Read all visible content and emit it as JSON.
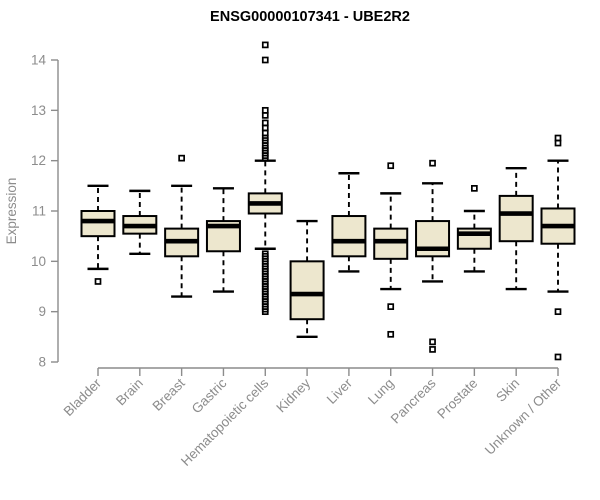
{
  "chart_data": {
    "type": "boxplot",
    "title": "ENSG00000107341 - UBE2R2",
    "ylabel": "Expression",
    "xlabel": "",
    "ylim": [
      8,
      14
    ],
    "yticks": [
      8,
      9,
      10,
      11,
      12,
      13,
      14
    ],
    "grid": false,
    "legend": "none",
    "colors": {
      "box_fill": "#ede7ce",
      "box_border": "#000000",
      "median": "#000000",
      "whisker": "#000000",
      "outlier": "#000000",
      "axis": "#8c8c8c",
      "label": "#8c8c8c",
      "title": "#000000",
      "background": "#ffffff"
    },
    "categories": [
      "Bladder",
      "Brain",
      "Breast",
      "Gastric",
      "Hematopoietic cells",
      "Kidney",
      "Liver",
      "Lung",
      "Pancreas",
      "Prostate",
      "Skin",
      "Unknown / Other"
    ],
    "series": [
      {
        "category": "Bladder",
        "whisker_low": 9.85,
        "q1": 10.5,
        "median": 10.8,
        "q3": 11.0,
        "whisker_high": 11.5,
        "outliers": [
          9.6
        ]
      },
      {
        "category": "Brain",
        "whisker_low": 10.15,
        "q1": 10.55,
        "median": 10.7,
        "q3": 10.9,
        "whisker_high": 11.4,
        "outliers": []
      },
      {
        "category": "Breast",
        "whisker_low": 9.3,
        "q1": 10.1,
        "median": 10.4,
        "q3": 10.65,
        "whisker_high": 11.5,
        "outliers": [
          12.05
        ]
      },
      {
        "category": "Gastric",
        "whisker_low": 9.4,
        "q1": 10.2,
        "median": 10.7,
        "q3": 10.8,
        "whisker_high": 11.45,
        "outliers": []
      },
      {
        "category": "Hematopoietic cells",
        "whisker_low": 10.25,
        "q1": 10.95,
        "median": 11.15,
        "q3": 11.35,
        "whisker_high": 12.0,
        "outliers": [
          14.3,
          14.0,
          13.0,
          12.9,
          12.75,
          12.65,
          12.55,
          12.45,
          12.4,
          12.3,
          12.25,
          12.2,
          12.15,
          12.1,
          12.05,
          10.15,
          10.1,
          10.05,
          10.0,
          9.95,
          9.9,
          9.85,
          9.8,
          9.75,
          9.7,
          9.65,
          9.6,
          9.55,
          9.5,
          9.45,
          9.4,
          9.35,
          9.3,
          9.25,
          9.2,
          9.15,
          9.1,
          9.05,
          9.0
        ]
      },
      {
        "category": "Kidney",
        "whisker_low": 8.5,
        "q1": 8.85,
        "median": 9.35,
        "q3": 10.0,
        "whisker_high": 10.8,
        "outliers": []
      },
      {
        "category": "Liver",
        "whisker_low": 9.8,
        "q1": 10.1,
        "median": 10.4,
        "q3": 10.9,
        "whisker_high": 11.75,
        "outliers": []
      },
      {
        "category": "Lung",
        "whisker_low": 9.45,
        "q1": 10.05,
        "median": 10.4,
        "q3": 10.65,
        "whisker_high": 11.35,
        "outliers": [
          11.9,
          9.1,
          8.55
        ]
      },
      {
        "category": "Pancreas",
        "whisker_low": 9.6,
        "q1": 10.1,
        "median": 10.25,
        "q3": 10.8,
        "whisker_high": 11.55,
        "outliers": [
          11.95,
          8.4,
          8.25
        ]
      },
      {
        "category": "Prostate",
        "whisker_low": 9.8,
        "q1": 10.25,
        "median": 10.55,
        "q3": 10.65,
        "whisker_high": 11.0,
        "outliers": [
          11.45
        ]
      },
      {
        "category": "Skin",
        "whisker_low": 9.45,
        "q1": 10.4,
        "median": 10.95,
        "q3": 11.3,
        "whisker_high": 11.85,
        "outliers": []
      },
      {
        "category": "Unknown / Other",
        "whisker_low": 9.4,
        "q1": 10.35,
        "median": 10.7,
        "q3": 11.05,
        "whisker_high": 12.0,
        "outliers": [
          12.45,
          12.35,
          9.0,
          8.1
        ]
      }
    ]
  }
}
